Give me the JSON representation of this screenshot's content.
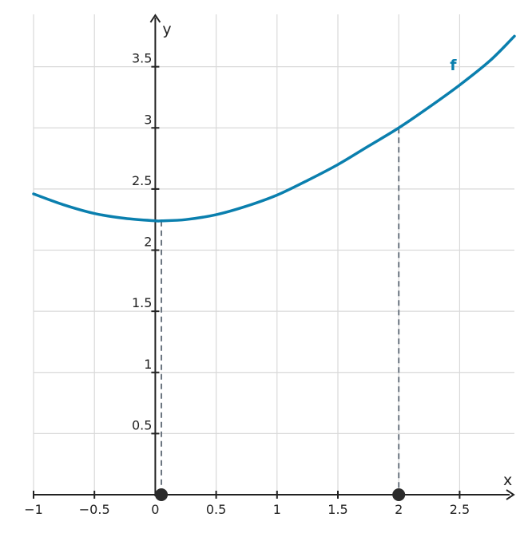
{
  "chart_data": {
    "type": "line",
    "function_label": "f",
    "xlabel": "x",
    "ylabel": "y",
    "xlim": [
      -1,
      2.95
    ],
    "ylim": [
      0,
      3.85
    ],
    "x_ticks": [
      -1,
      -0.5,
      0,
      0.5,
      1,
      1.5,
      2,
      2.5
    ],
    "x_tick_labels": [
      "−1",
      "−0.5",
      "0",
      "0.5",
      "1",
      "1.5",
      "2",
      "2.5"
    ],
    "y_ticks": [
      0.5,
      1,
      1.5,
      2,
      2.5,
      3,
      3.5
    ],
    "y_tick_labels": [
      "0.5",
      "1",
      "1.5",
      "2",
      "2.5",
      "3",
      "3.5"
    ],
    "series": [
      {
        "name": "f",
        "color": "#0a7fae",
        "x": [
          -1,
          -0.75,
          -0.5,
          -0.25,
          0,
          0.05,
          0.25,
          0.5,
          0.75,
          1,
          1.25,
          1.5,
          1.75,
          2,
          2.25,
          2.5,
          2.75,
          2.95
        ],
        "y": [
          2.46,
          2.37,
          2.3,
          2.26,
          2.24,
          2.24,
          2.25,
          2.29,
          2.36,
          2.45,
          2.57,
          2.7,
          2.85,
          3.0,
          3.17,
          3.35,
          3.55,
          3.75
        ]
      }
    ],
    "marked_points": [
      {
        "x": 0.05,
        "y": 0
      },
      {
        "x": 2,
        "y": 0
      }
    ],
    "guide_lines": [
      {
        "x": 0.05,
        "y": 2.24
      },
      {
        "x": 2,
        "y": 3.0
      }
    ],
    "grid": true
  }
}
